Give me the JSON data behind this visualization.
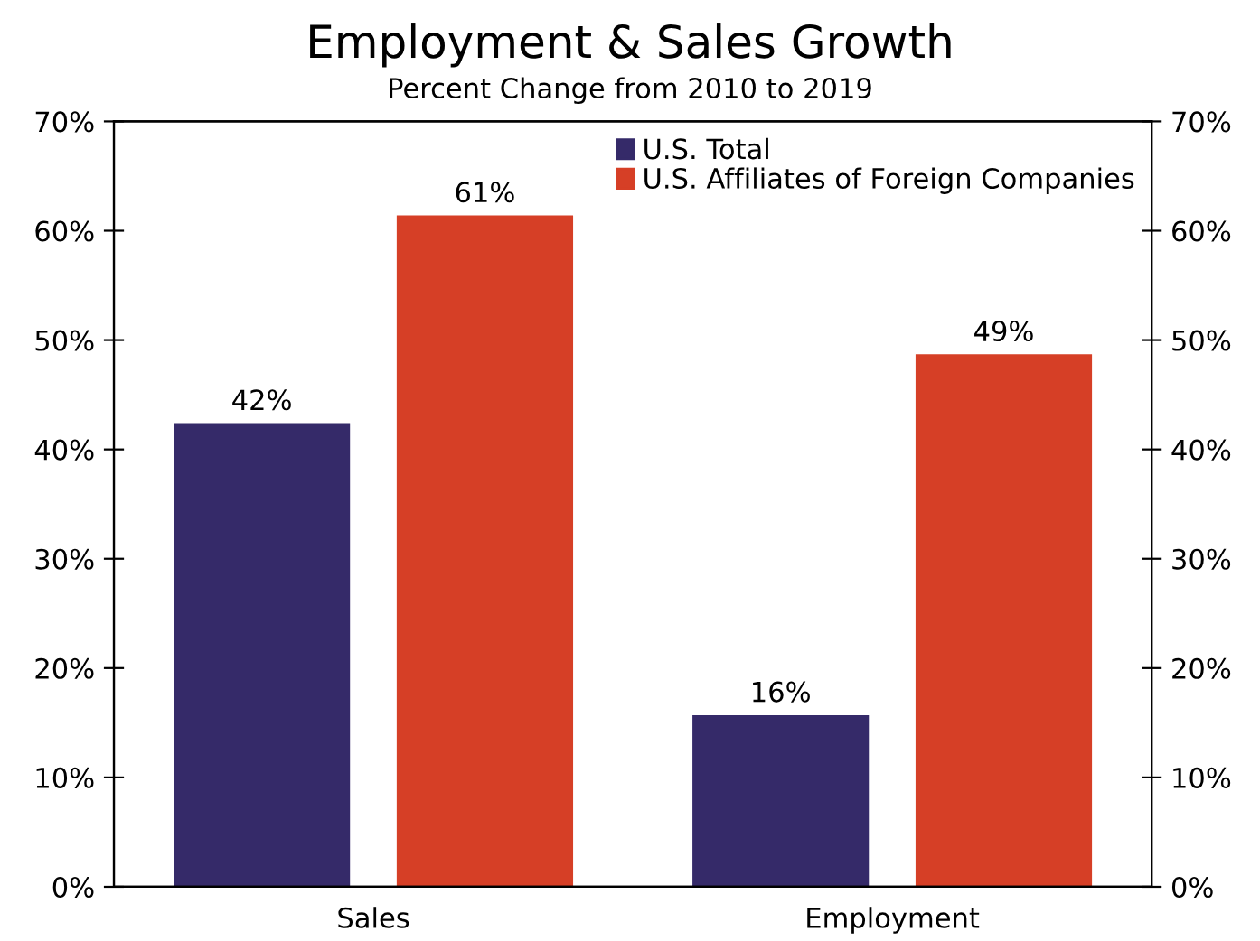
{
  "chart_data": {
    "type": "bar",
    "title": "Employment & Sales Growth",
    "subtitle": "Percent Change from 2010 to 2019",
    "categories": [
      "Sales",
      "Employment"
    ],
    "series": [
      {
        "name": "U.S. Total",
        "color": "#352a69",
        "values": [
          42.4,
          15.7
        ],
        "value_labels": [
          "42%",
          "16%"
        ]
      },
      {
        "name": "U.S. Affiliates of Foreign Companies",
        "color": "#d63f26",
        "values": [
          61.4,
          48.7
        ],
        "value_labels": [
          "61%",
          "49%"
        ]
      }
    ],
    "ylim": [
      0,
      70
    ],
    "yticks": [
      {
        "value": 0,
        "label": "0%"
      },
      {
        "value": 10,
        "label": "10%"
      },
      {
        "value": 20,
        "label": "20%"
      },
      {
        "value": 30,
        "label": "30%"
      },
      {
        "value": 40,
        "label": "40%"
      },
      {
        "value": 50,
        "label": "50%"
      },
      {
        "value": 60,
        "label": "60%"
      },
      {
        "value": 70,
        "label": "70%"
      }
    ],
    "y2lim": [
      0,
      70
    ],
    "y2ticks": [
      {
        "value": 0,
        "label": "0%"
      },
      {
        "value": 10,
        "label": "10%"
      },
      {
        "value": 20,
        "label": "20%"
      },
      {
        "value": 30,
        "label": "30%"
      },
      {
        "value": 40,
        "label": "40%"
      },
      {
        "value": 50,
        "label": "50%"
      },
      {
        "value": 60,
        "label": "60%"
      },
      {
        "value": 70,
        "label": "70%"
      }
    ],
    "legend": "top right",
    "grid": false
  }
}
